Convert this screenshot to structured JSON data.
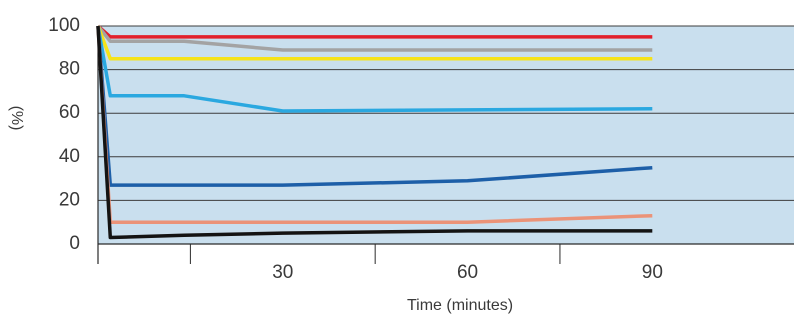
{
  "chart_data": {
    "type": "line",
    "title": "",
    "xlabel": "Time (minutes)",
    "ylabel": "(%)",
    "ylim": [
      0,
      100
    ],
    "y_ticks": [
      "0",
      "20",
      "40",
      "60",
      "80",
      "100"
    ],
    "x_ticks": [
      "30",
      "60",
      "90"
    ],
    "xlim": [
      0,
      113
    ],
    "grid": "horizontal",
    "plot_background": "#c9dfee",
    "series": [
      {
        "color": "#e2202c",
        "x": [
          0,
          2,
          30,
          90
        ],
        "y": [
          100,
          95,
          95,
          95
        ]
      },
      {
        "color": "#a3a3a3",
        "x": [
          0,
          2,
          14,
          30,
          90
        ],
        "y": [
          100,
          93,
          93,
          89,
          89
        ]
      },
      {
        "color": "#f5e319",
        "x": [
          0,
          2,
          30,
          90
        ],
        "y": [
          100,
          85,
          85,
          85
        ]
      },
      {
        "color": "#2aa8e0",
        "x": [
          0,
          2,
          14,
          30,
          90
        ],
        "y": [
          100,
          68,
          68,
          61,
          62
        ]
      },
      {
        "color": "#1d5fa8",
        "x": [
          0,
          2,
          14,
          30,
          60,
          90
        ],
        "y": [
          100,
          27,
          27,
          27,
          29,
          35
        ]
      },
      {
        "color": "#eb9378",
        "x": [
          0,
          2,
          14,
          30,
          60,
          90
        ],
        "y": [
          100,
          10,
          10,
          10,
          10,
          13
        ]
      },
      {
        "color": "#141414",
        "x": [
          0,
          2,
          14,
          30,
          60,
          90
        ],
        "y": [
          100,
          3,
          4,
          5,
          6,
          6
        ]
      }
    ]
  }
}
